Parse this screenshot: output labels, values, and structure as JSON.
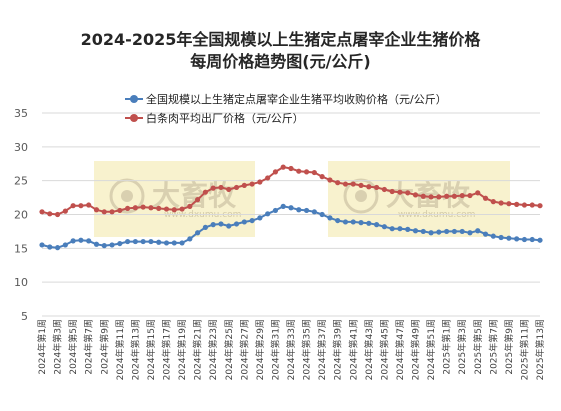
{
  "chart_data": {
    "type": "line",
    "title_line1": "2024-2025年全国规模以上生猪定点屠宰企业生猪价格",
    "title_line2": "每周价格趋势图(元/公斤)",
    "ylim": [
      5,
      35
    ],
    "y_ticks": [
      "5",
      "10",
      "15",
      "20",
      "25",
      "30",
      "35"
    ],
    "grid": true,
    "legend_position": "top-left",
    "x_labels": [
      "2024年第1周",
      "2024年第3周",
      "2024年第5周",
      "2024年第7周",
      "2024年第9周",
      "2024年第11周",
      "2024年第13周",
      "2024年第15周",
      "2024年第17周",
      "2024年第19周",
      "2024年第21周",
      "2024年第23周",
      "2024年第25周",
      "2024年第27周",
      "2024年第29周",
      "2024年第31周",
      "2024年第33周",
      "2024年第35周",
      "2024年第37周",
      "2024年第39周",
      "2024年第41周",
      "2024年第43周",
      "2024年第45周",
      "2024年第47周",
      "2024年第49周",
      "2024年第51周",
      "2025年第1周",
      "2025年第3周",
      "2025年第5周",
      "2025年第7周",
      "2025年第9周",
      "2025年第11周",
      "2025年第13周"
    ],
    "series": [
      {
        "name": "全国规模以上生猪定点屠宰企业生猪平均收购价格（元/公斤）",
        "color": "#4a7ebb",
        "values": [
          15.5,
          15.2,
          15.1,
          15.5,
          16.1,
          16.2,
          16.1,
          15.6,
          15.4,
          15.5,
          15.7,
          16.0,
          16.0,
          16.0,
          16.0,
          15.9,
          15.8,
          15.8,
          15.8,
          16.4,
          17.3,
          18.1,
          18.5,
          18.6,
          18.3,
          18.6,
          18.9,
          19.1,
          19.5,
          20.1,
          20.6,
          21.2,
          21.0,
          20.7,
          20.6,
          20.4,
          20.0,
          19.5,
          19.1,
          18.9,
          18.9,
          18.8,
          18.7,
          18.5,
          18.2,
          17.9,
          17.9,
          17.8,
          17.6,
          17.5,
          17.3,
          17.4,
          17.5,
          17.5,
          17.5,
          17.3,
          17.6,
          17.1,
          16.8,
          16.6,
          16.5,
          16.4,
          16.3,
          16.3,
          16.2
        ]
      },
      {
        "name": "白条肉平均出厂价格（元/公斤）",
        "color": "#c0504d",
        "values": [
          20.4,
          20.1,
          20.0,
          20.5,
          21.3,
          21.3,
          21.4,
          20.7,
          20.4,
          20.4,
          20.6,
          20.9,
          21.0,
          21.1,
          21.0,
          20.9,
          20.8,
          20.7,
          20.8,
          21.2,
          22.2,
          23.3,
          23.9,
          24.0,
          23.7,
          24.0,
          24.3,
          24.5,
          24.8,
          25.4,
          26.3,
          27.0,
          26.8,
          26.4,
          26.3,
          26.2,
          25.6,
          25.1,
          24.7,
          24.5,
          24.5,
          24.3,
          24.1,
          24.0,
          23.7,
          23.4,
          23.3,
          23.2,
          22.9,
          22.7,
          22.6,
          22.6,
          22.7,
          22.7,
          22.8,
          22.8,
          23.2,
          22.4,
          21.9,
          21.7,
          21.6,
          21.5,
          21.4,
          21.4,
          21.3
        ]
      }
    ]
  },
  "watermark": {
    "text": "大畜牧",
    "sub": "www.dxumu.com"
  }
}
